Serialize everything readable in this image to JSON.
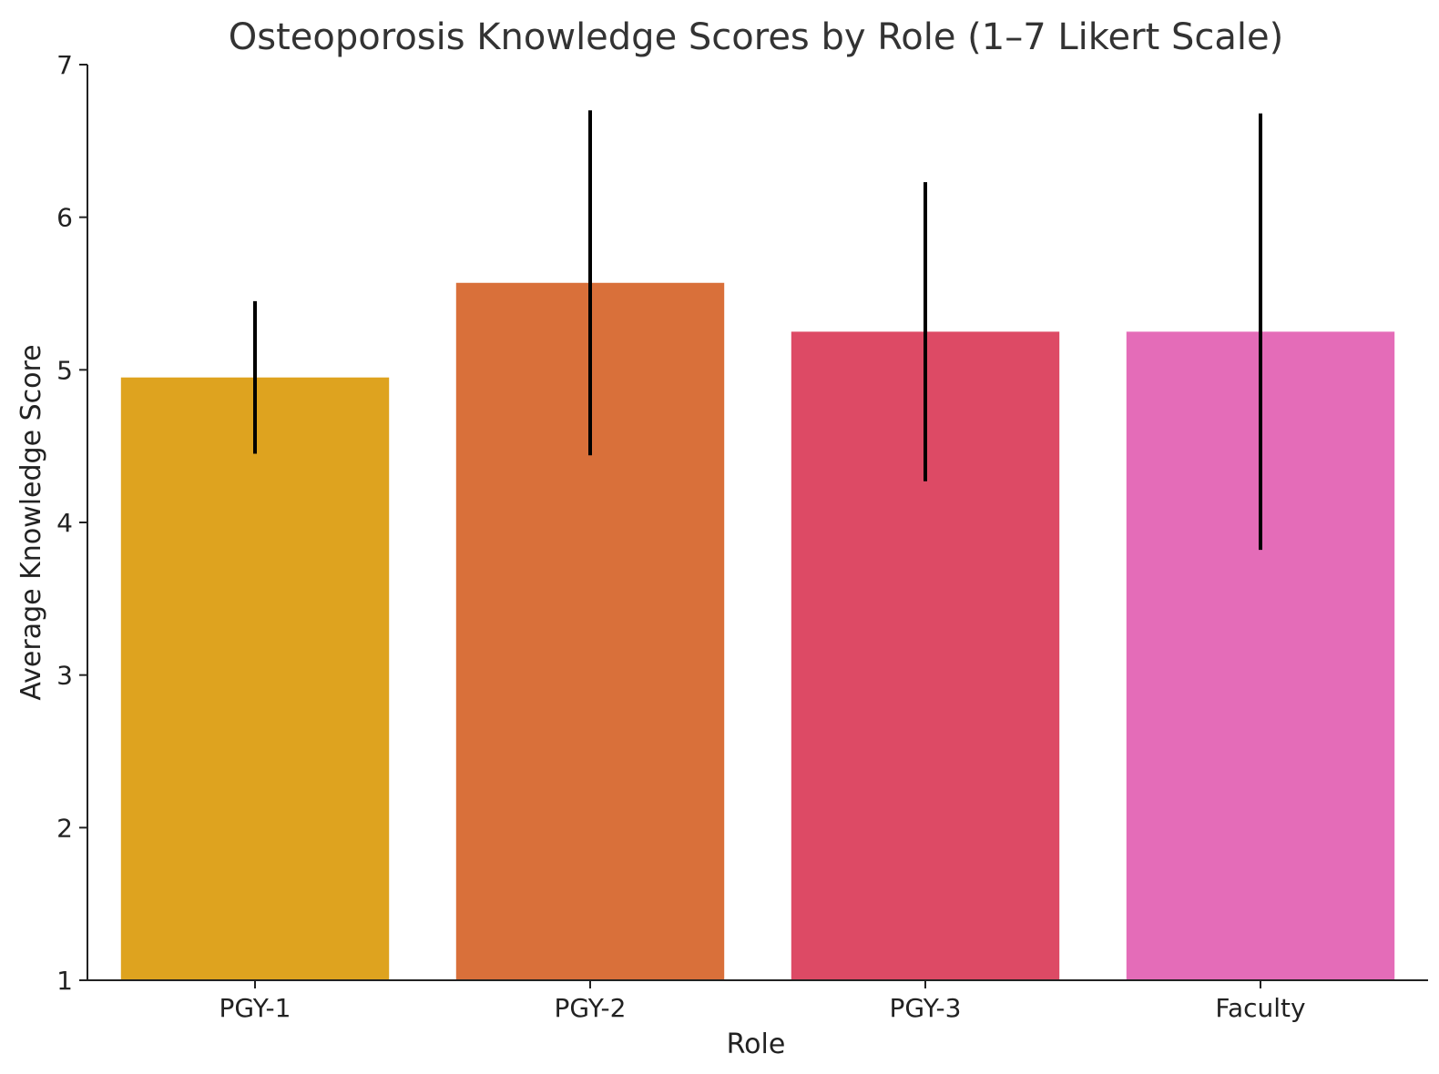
{
  "chart_data": {
    "type": "bar",
    "title": "Osteoporosis Knowledge Scores by Role (1–7 Likert Scale)",
    "xlabel": "Role",
    "ylabel": "Average Knowledge Score",
    "ylim": [
      1,
      7
    ],
    "yticks": [
      1,
      2,
      3,
      4,
      5,
      6,
      7
    ],
    "grid": false,
    "categories": [
      "PGY-1",
      "PGY-2",
      "PGY-3",
      "Faculty"
    ],
    "values": [
      4.95,
      5.57,
      5.25,
      5.25
    ],
    "error": [
      0.5,
      1.13,
      0.98,
      1.43
    ],
    "colors": [
      "#DEA31F",
      "#D9703A",
      "#DD4A65",
      "#E46CB8"
    ]
  }
}
